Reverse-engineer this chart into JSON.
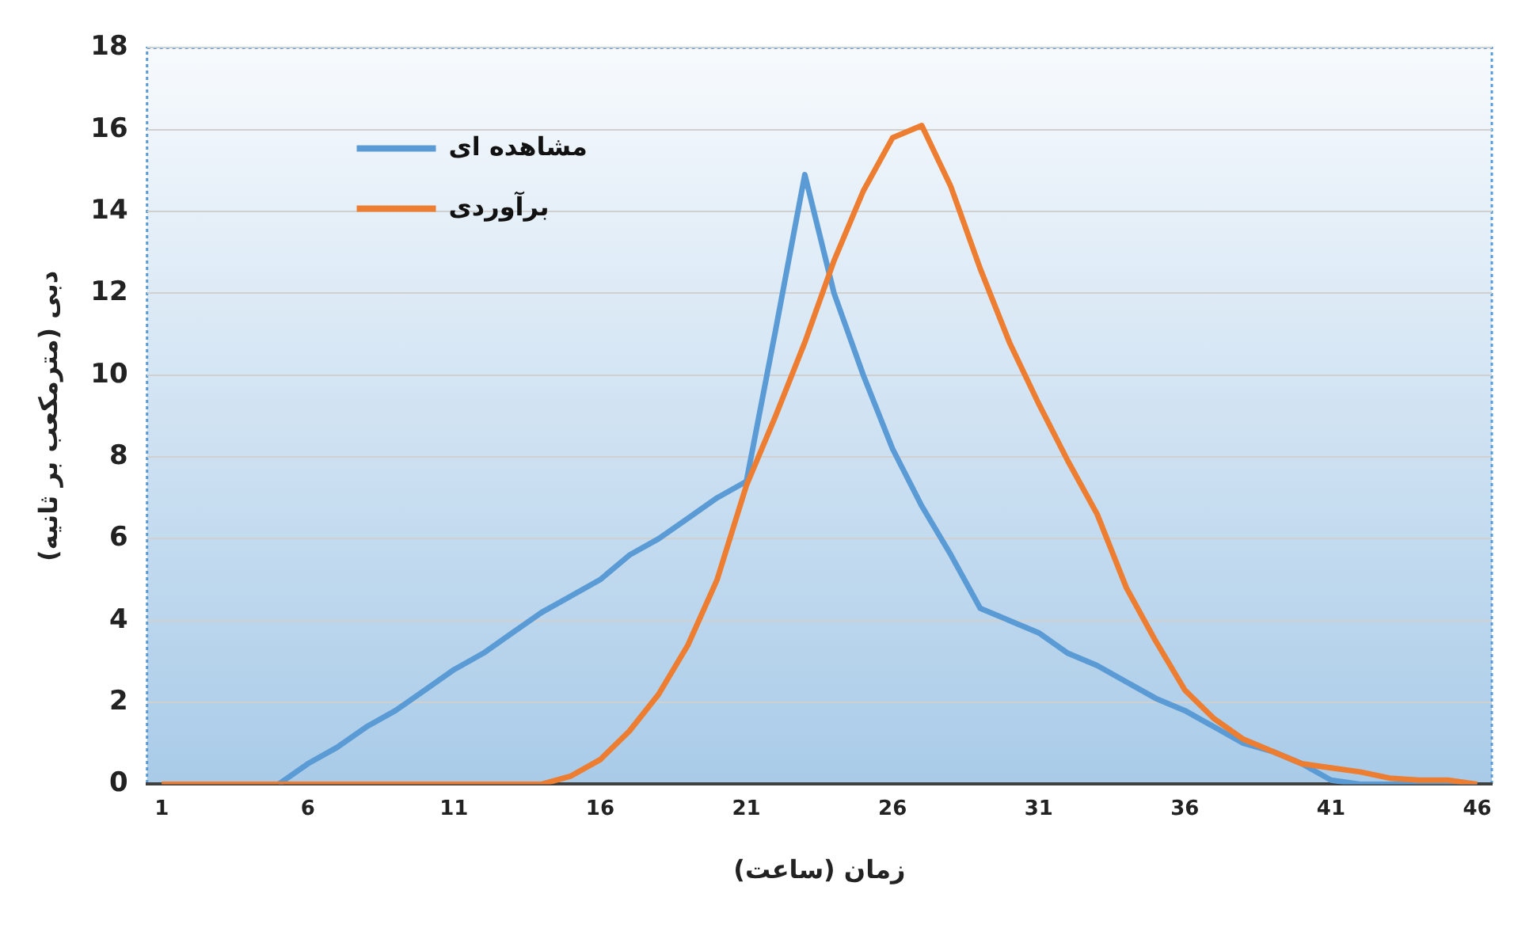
{
  "chart_data": {
    "type": "line",
    "xlabel": "زمان (ساعت)",
    "ylabel": "دبی (مترمکعب بر ثانیه)",
    "categories": [
      "1",
      null,
      null,
      null,
      null,
      "6",
      null,
      null,
      null,
      null,
      "11",
      null,
      null,
      null,
      null,
      "16",
      null,
      null,
      null,
      null,
      "21",
      null,
      null,
      null,
      null,
      "26",
      null,
      null,
      null,
      null,
      "31",
      null,
      null,
      null,
      null,
      "36",
      null,
      null,
      null,
      null,
      "41",
      null,
      null,
      null,
      null,
      "46"
    ],
    "series": [
      {
        "name": "مشاهده ای",
        "color": "#5b9bd5",
        "values": [
          null,
          null,
          null,
          null,
          0,
          0.5,
          0.9,
          1.4,
          1.8,
          2.3,
          2.8,
          3.2,
          3.7,
          4.2,
          4.6,
          5.0,
          5.6,
          6.0,
          6.5,
          7.0,
          7.4,
          11.1,
          14.9,
          12.0,
          10.0,
          8.2,
          6.8,
          5.6,
          4.3,
          4.0,
          3.7,
          3.2,
          2.9,
          2.5,
          2.1,
          1.8,
          1.4,
          1.0,
          0.8,
          0.5,
          0.1,
          0,
          0,
          0,
          0,
          0
        ]
      },
      {
        "name": "برآوردی",
        "color": "#ed7d31",
        "values": [
          0,
          0,
          0,
          0,
          0,
          0,
          0,
          0,
          0,
          0,
          0,
          0,
          0,
          0,
          0.2,
          0.6,
          1.3,
          2.2,
          3.4,
          5.0,
          7.3,
          9.0,
          10.8,
          12.8,
          14.5,
          15.8,
          16.1,
          14.6,
          12.6,
          10.8,
          9.3,
          7.9,
          6.6,
          4.8,
          3.5,
          2.3,
          1.6,
          1.1,
          0.8,
          0.5,
          0.4,
          0.3,
          0.15,
          0.1,
          0.1,
          0
        ]
      }
    ],
    "ylim": [
      0,
      18
    ],
    "yticks": [
      0,
      2,
      4,
      6,
      8,
      10,
      12,
      14,
      16,
      18
    ],
    "grid": "y",
    "legend": "top left",
    "marker": "none",
    "line_style": "solid"
  }
}
